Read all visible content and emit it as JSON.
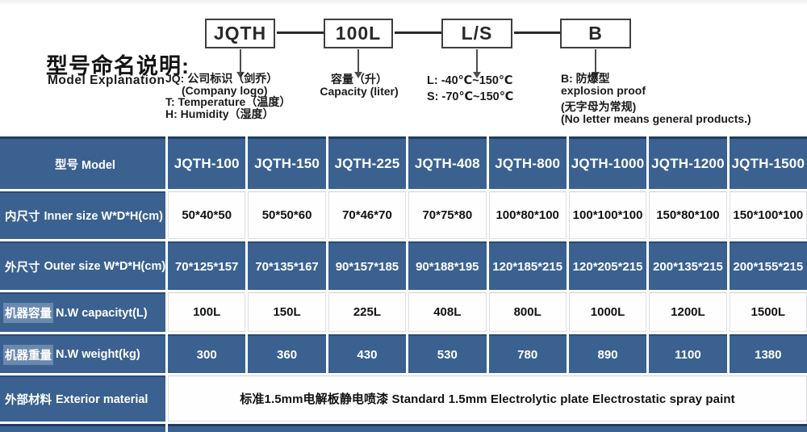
{
  "diagram": {
    "title_zh": "型号命名说明:",
    "title_en": "Model Explanation",
    "boxes": [
      {
        "label": "JQTH"
      },
      {
        "label": "100L"
      },
      {
        "label": "L/S"
      },
      {
        "label": "B"
      }
    ],
    "notes": [
      {
        "lines": [
          "JQ: 公司标识（剑乔）",
          "(Company logo)",
          "T: Temperature（温度）",
          "H: Humidity（湿度）"
        ]
      },
      {
        "lines": [
          "容量（升）",
          "Capacity (liter)"
        ]
      },
      {
        "lines": [
          "L: -40℃~150℃",
          "S: -70℃~150℃"
        ]
      },
      {
        "lines": [
          "B: 防爆型",
          "explosion proof"
        ],
        "lines2": [
          "(无字母为常规)",
          "(No letter means general products.)"
        ]
      }
    ]
  },
  "table": {
    "header": {
      "label": "型号 Model",
      "models": [
        "JQTH-100",
        "JQTH-150",
        "JQTH-225",
        "JQTH-408",
        "JQTH-800",
        "JQTH-1000",
        "JQTH-1200",
        "JQTH-1500"
      ]
    },
    "rows": [
      {
        "label_zh": "内尺寸",
        "label_en": "Inner size W*D*H(cm)",
        "variant": "light",
        "zh_highlight": false,
        "values": [
          "50*40*50",
          "50*50*60",
          "70*46*70",
          "70*75*80",
          "100*80*100",
          "100*100*100",
          "150*80*100",
          "150*100*100"
        ]
      },
      {
        "label_zh": "外尺寸",
        "label_en": "Outer size W*D*H(cm)",
        "variant": "dark",
        "zh_highlight": false,
        "values": [
          "70*125*157",
          "70*135*167",
          "90*157*185",
          "90*188*195",
          "120*185*215",
          "120*205*215",
          "200*135*215",
          "200*155*215"
        ]
      },
      {
        "label_zh": "机器容量",
        "label_en": "N.W capacityt(L)",
        "variant": "light",
        "zh_highlight": true,
        "values": [
          "100L",
          "150L",
          "225L",
          "408L",
          "800L",
          "1000L",
          "1200L",
          "1500L"
        ]
      },
      {
        "label_zh": "机器重量",
        "label_en": "N.W weight(kg)",
        "variant": "dark",
        "zh_highlight": true,
        "values": [
          "300",
          "360",
          "430",
          "530",
          "780",
          "890",
          "1100",
          "1380"
        ]
      },
      {
        "label_zh": "外部材料",
        "label_en": "Exterior material",
        "variant": "light",
        "merged_value": "标准1.5mm电解板静电喷漆  Standard 1.5mm Electrolytic plate Electrostatic spray paint"
      }
    ]
  },
  "colors": {
    "table_blue": "#3a6190",
    "table_blue_border": "#2b4b74",
    "header_border": "#223c60",
    "text_dark": "#121212"
  }
}
